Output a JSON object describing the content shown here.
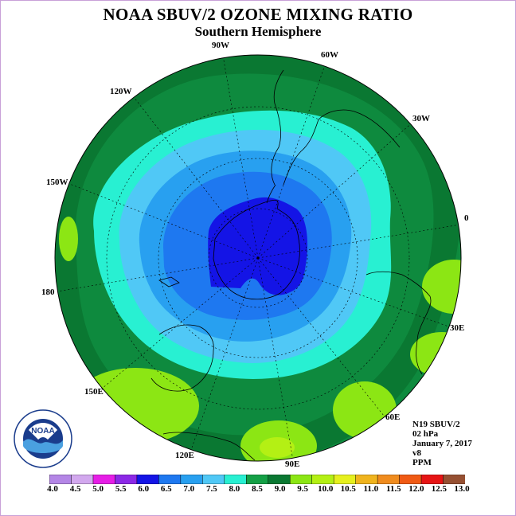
{
  "title": "NOAA SBUV/2 OZONE MIXING RATIO",
  "subtitle": "Southern Hemisphere",
  "longitude_labels": {
    "lon_90w": "90W",
    "lon_60w": "60W",
    "lon_120w": "120W",
    "lon_30w": "30W",
    "lon_150w": "150W",
    "lon_0": "0",
    "lon_180": "180",
    "lon_30e": "30E",
    "lon_150e": "150E",
    "lon_60e": "60E",
    "lon_120e": "120E",
    "lon_90e": "90E"
  },
  "info": {
    "satellite": "N19 SBUV/2",
    "level": "02 hPa",
    "date": "January 7, 2017",
    "version": "v8",
    "units": "PPM"
  },
  "logo": {
    "text": "NOAA",
    "ring_text": "NATIONAL OCEANIC AND ATMOSPHERIC ADMINISTRATION U.S. DEPARTMENT OF COMMERCE"
  },
  "colorbar": {
    "ticks": [
      "4.0",
      "4.5",
      "5.0",
      "5.5",
      "6.0",
      "6.5",
      "7.0",
      "7.5",
      "8.0",
      "8.5",
      "9.0",
      "9.5",
      "10.0",
      "10.5",
      "11.0",
      "11.5",
      "12.0",
      "12.5",
      "13.0"
    ],
    "colors": [
      "#b486e6",
      "#d2a8ee",
      "#e61ee6",
      "#8c28e6",
      "#1414e6",
      "#1e78f0",
      "#28a0f0",
      "#50c8f6",
      "#28f0d2",
      "#14a046",
      "#0a7832",
      "#8ce614",
      "#b4f014",
      "#e6f01e",
      "#f0b41e",
      "#f08c1e",
      "#f05a14",
      "#e61414",
      "#965032"
    ]
  },
  "contour_colors": {
    "c8_0": "#0e8a3e",
    "c8_5": "#0a7832",
    "c9_0": "#8ce614",
    "c9_5": "#b4f014",
    "c7_5": "#28f0d2",
    "c7_0": "#50c8f6",
    "c6_5": "#28a0f0",
    "c6_0": "#1e78f0",
    "c5_5": "#1414e6"
  }
}
